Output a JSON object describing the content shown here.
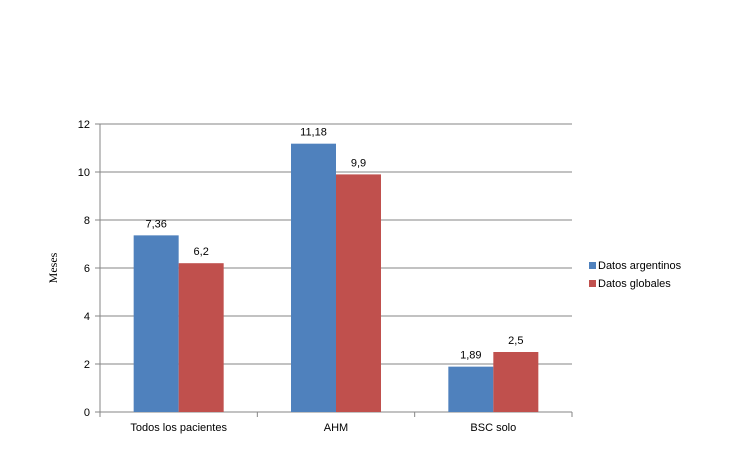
{
  "chart_data": {
    "type": "bar",
    "title": "",
    "xlabel": "",
    "ylabel": "Meses",
    "categories": [
      "Todos los pacientes",
      "AHM",
      "BSC solo"
    ],
    "series": [
      {
        "name": "Datos argentinos",
        "color": "#4F81BD",
        "values": [
          7.36,
          11.18,
          1.89
        ],
        "labels": [
          "7,36",
          "11,18",
          "1,89"
        ]
      },
      {
        "name": "Datos globales",
        "color": "#C0504D",
        "values": [
          6.2,
          9.9,
          2.5
        ],
        "labels": [
          "6,2",
          "9,9",
          "2,5"
        ]
      }
    ],
    "ylim": [
      0,
      12
    ],
    "yticks": [
      0,
      2,
      4,
      6,
      8,
      10,
      12
    ],
    "grid": true,
    "legend": "right"
  }
}
